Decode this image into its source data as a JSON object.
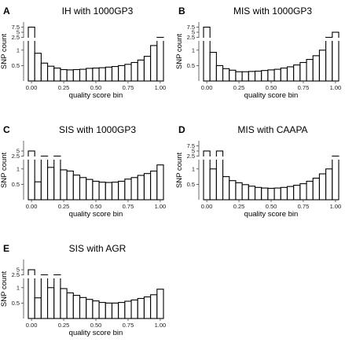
{
  "chart_data": [
    {
      "type": "bar",
      "panel": "A",
      "title": "IH with 1000GP3",
      "xlabel": "quality score bin",
      "ylabel": "SNP count",
      "x": [
        0.0,
        0.05,
        0.1,
        0.15,
        0.2,
        0.25,
        0.3,
        0.35,
        0.4,
        0.45,
        0.5,
        0.55,
        0.6,
        0.65,
        0.7,
        0.75,
        0.8,
        0.85,
        0.9,
        0.95,
        1.0
      ],
      "values": [
        7.5,
        0.9,
        0.58,
        0.48,
        0.42,
        0.37,
        0.36,
        0.37,
        0.38,
        0.41,
        0.42,
        0.43,
        0.45,
        0.47,
        0.5,
        0.54,
        0.6,
        0.68,
        0.8,
        1.15,
        2.5
      ],
      "xticks": [
        "0.00",
        "0.25",
        "0.50",
        "0.75",
        "1.00"
      ],
      "yticks": [
        "0.5",
        "1",
        "2.5",
        "5",
        "7.5"
      ],
      "grid": false,
      "axis_break": true
    },
    {
      "type": "bar",
      "panel": "B",
      "title": "MIS with 1000GP3",
      "xlabel": "quality score bin",
      "ylabel": "SNP count",
      "x": [
        0.0,
        0.05,
        0.1,
        0.15,
        0.2,
        0.25,
        0.3,
        0.35,
        0.4,
        0.45,
        0.5,
        0.55,
        0.6,
        0.65,
        0.7,
        0.75,
        0.8,
        0.85,
        0.9,
        0.95,
        1.0
      ],
      "values": [
        7.5,
        0.93,
        0.5,
        0.4,
        0.35,
        0.3,
        0.3,
        0.31,
        0.32,
        0.34,
        0.36,
        0.38,
        0.42,
        0.46,
        0.52,
        0.6,
        0.7,
        0.82,
        1.0,
        2.5,
        5
      ],
      "xticks": [
        "0.00",
        "0.25",
        "0.50",
        "0.75",
        "1.00"
      ],
      "yticks": [
        "0.5",
        "1",
        "2.5",
        "5",
        "7.5"
      ],
      "grid": false,
      "axis_break": true
    },
    {
      "type": "bar",
      "panel": "C",
      "title": "SIS with 1000GP3",
      "xlabel": "quality score bin",
      "ylabel": "SNP count",
      "x": [
        0.0,
        0.05,
        0.1,
        0.15,
        0.2,
        0.25,
        0.3,
        0.35,
        0.4,
        0.45,
        0.5,
        0.55,
        0.6,
        0.65,
        0.7,
        0.75,
        0.8,
        0.85,
        0.9,
        0.95,
        1.0
      ],
      "values": [
        5,
        0.58,
        2.5,
        1.05,
        2.5,
        0.97,
        0.93,
        0.8,
        0.72,
        0.66,
        0.6,
        0.57,
        0.56,
        0.57,
        0.6,
        0.67,
        0.72,
        0.79,
        0.85,
        0.93,
        1.13
      ],
      "xticks": [
        "0.00",
        "0.25",
        "0.50",
        "0.75",
        "1.00"
      ],
      "yticks": [
        "0.5",
        "1",
        "2.5",
        "5"
      ],
      "grid": false,
      "axis_break": true
    },
    {
      "type": "bar",
      "panel": "D",
      "title": "MIS with CAAPA",
      "xlabel": "quality score bin",
      "ylabel": "SNP count",
      "x": [
        0.0,
        0.05,
        0.1,
        0.15,
        0.2,
        0.25,
        0.3,
        0.35,
        0.4,
        0.45,
        0.5,
        0.55,
        0.6,
        0.65,
        0.7,
        0.75,
        0.8,
        0.85,
        0.9,
        0.95,
        1.0
      ],
      "values": [
        5,
        1.0,
        5,
        0.75,
        0.62,
        0.55,
        0.49,
        0.44,
        0.4,
        0.38,
        0.37,
        0.38,
        0.4,
        0.43,
        0.47,
        0.52,
        0.6,
        0.7,
        0.84,
        1.0,
        2.5
      ],
      "xticks": [
        "0.00",
        "0.25",
        "0.50",
        "0.75",
        "1.00"
      ],
      "yticks": [
        "0.5",
        "1",
        "2.5",
        "5",
        "7.5"
      ],
      "grid": false,
      "axis_break": true
    },
    {
      "type": "bar",
      "panel": "E",
      "title": "SIS with AGR",
      "xlabel": "quality score bin",
      "ylabel": "SNP count",
      "x": [
        0.0,
        0.05,
        0.1,
        0.15,
        0.2,
        0.25,
        0.3,
        0.35,
        0.4,
        0.45,
        0.5,
        0.55,
        0.6,
        0.65,
        0.7,
        0.75,
        0.8,
        0.85,
        0.9,
        0.95,
        1.0
      ],
      "values": [
        5,
        0.67,
        2.5,
        1.0,
        2.5,
        0.97,
        0.83,
        0.75,
        0.68,
        0.62,
        0.57,
        0.52,
        0.5,
        0.5,
        0.52,
        0.56,
        0.6,
        0.65,
        0.7,
        0.77,
        0.95
      ],
      "xticks": [
        "0.00",
        "0.25",
        "0.50",
        "0.75",
        "1.00"
      ],
      "yticks": [
        "0.5",
        "1",
        "2.5",
        "5"
      ],
      "grid": false,
      "axis_break": true
    }
  ]
}
